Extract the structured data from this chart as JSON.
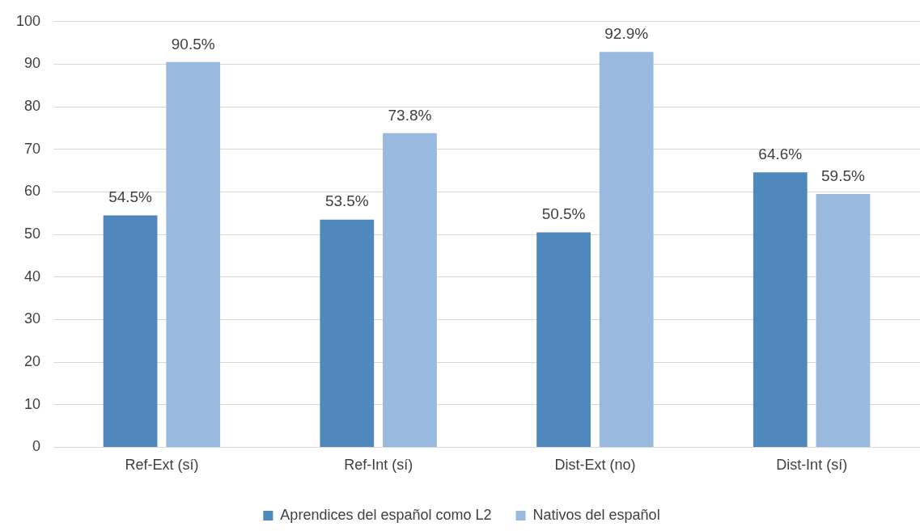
{
  "chart_data": {
    "type": "bar",
    "categories": [
      "Ref-Ext (sí)",
      "Ref-Int (sí)",
      "Dist-Ext (no)",
      "Dist-Int (sí)"
    ],
    "series": [
      {
        "name": "Aprendices del español como L2",
        "color": "#4f88bd",
        "values": [
          54.5,
          53.5,
          50.5,
          64.6
        ],
        "value_labels": [
          "54.5%",
          "53.5%",
          "50.5%",
          "64.6%"
        ]
      },
      {
        "name": "Nativos del español",
        "color": "#9ab9df",
        "values": [
          90.5,
          73.8,
          92.9,
          59.5
        ],
        "value_labels": [
          "90.5%",
          "73.8%",
          "92.9%",
          "59.5%"
        ]
      }
    ],
    "ylim": [
      0,
      100
    ],
    "yticks": [
      0,
      10,
      20,
      30,
      40,
      50,
      60,
      70,
      80,
      90,
      100
    ],
    "grid": "y",
    "legend": "bottom"
  }
}
